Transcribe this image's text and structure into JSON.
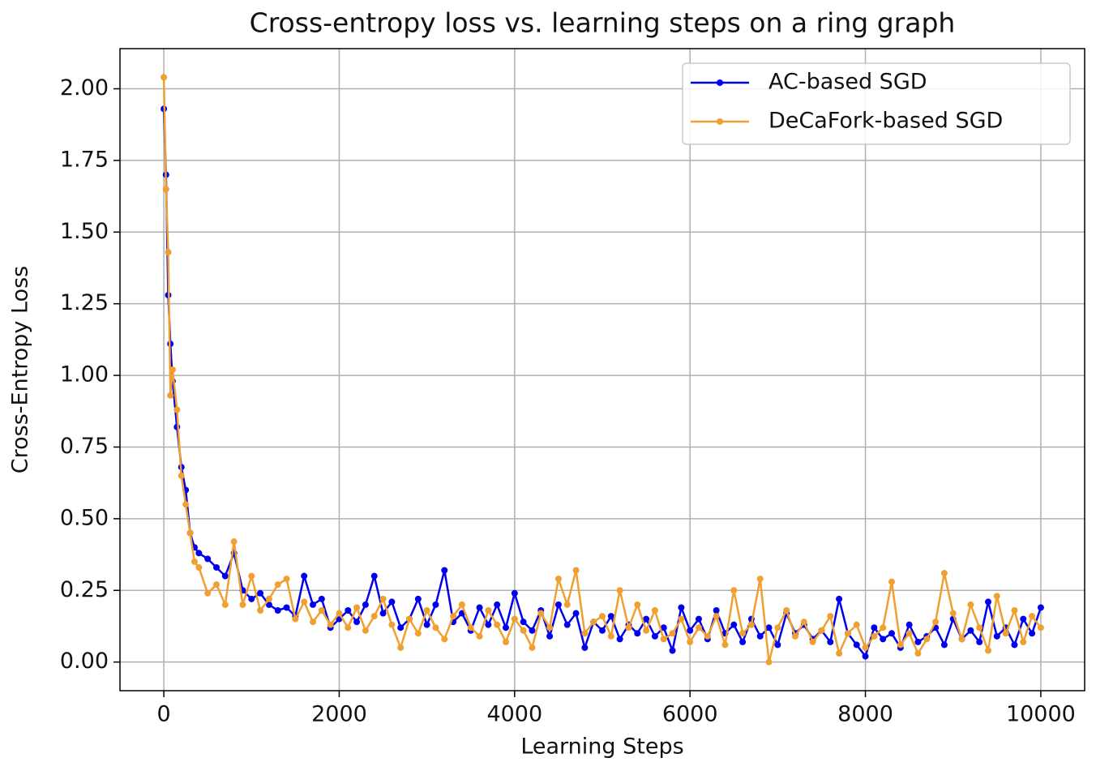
{
  "chart_data": {
    "type": "line",
    "title": "Cross-entropy loss vs. learning steps on a ring graph",
    "x_label": "Learning Steps",
    "y_label": "Cross-Entropy Loss",
    "x": [
      0,
      25,
      50,
      75,
      100,
      150,
      200,
      250,
      300,
      350,
      400,
      500,
      600,
      700,
      800,
      900,
      1000,
      1100,
      1200,
      1300,
      1400,
      1500,
      1600,
      1700,
      1800,
      1900,
      2000,
      2100,
      2200,
      2300,
      2400,
      2500,
      2600,
      2700,
      2800,
      2900,
      3000,
      3100,
      3200,
      3300,
      3400,
      3500,
      3600,
      3700,
      3800,
      3900,
      4000,
      4100,
      4200,
      4300,
      4400,
      4500,
      4600,
      4700,
      4800,
      4900,
      5000,
      5100,
      5200,
      5300,
      5400,
      5500,
      5600,
      5700,
      5800,
      5900,
      6000,
      6100,
      6200,
      6300,
      6400,
      6500,
      6600,
      6700,
      6800,
      6900,
      7000,
      7100,
      7200,
      7300,
      7400,
      7500,
      7600,
      7700,
      7800,
      7900,
      8000,
      8100,
      8200,
      8300,
      8400,
      8500,
      8600,
      8700,
      8800,
      8900,
      9000,
      9100,
      9200,
      9300,
      9400,
      9500,
      9600,
      9700,
      9800,
      9900,
      10000
    ],
    "series": [
      {
        "name": "AC-based SGD",
        "color": "#0000ee",
        "values": [
          1.93,
          1.7,
          1.28,
          1.11,
          0.98,
          0.82,
          0.68,
          0.6,
          0.45,
          0.4,
          0.38,
          0.36,
          0.33,
          0.3,
          0.38,
          0.25,
          0.22,
          0.24,
          0.2,
          0.18,
          0.19,
          0.16,
          0.3,
          0.2,
          0.22,
          0.12,
          0.15,
          0.18,
          0.14,
          0.2,
          0.3,
          0.17,
          0.21,
          0.12,
          0.15,
          0.22,
          0.13,
          0.2,
          0.32,
          0.14,
          0.17,
          0.11,
          0.19,
          0.13,
          0.2,
          0.12,
          0.24,
          0.14,
          0.11,
          0.18,
          0.09,
          0.2,
          0.13,
          0.17,
          0.05,
          0.14,
          0.11,
          0.16,
          0.08,
          0.13,
          0.1,
          0.15,
          0.09,
          0.12,
          0.04,
          0.19,
          0.11,
          0.15,
          0.08,
          0.18,
          0.1,
          0.13,
          0.07,
          0.15,
          0.09,
          0.12,
          0.06,
          0.17,
          0.1,
          0.13,
          0.08,
          0.11,
          0.07,
          0.22,
          0.1,
          0.06,
          0.02,
          0.12,
          0.08,
          0.1,
          0.05,
          0.13,
          0.07,
          0.09,
          0.12,
          0.06,
          0.15,
          0.08,
          0.11,
          0.07,
          0.21,
          0.09,
          0.12,
          0.06,
          0.15,
          0.1,
          0.19
        ]
      },
      {
        "name": "DeCaFork-based SGD",
        "color": "#f0a030",
        "values": [
          2.04,
          1.65,
          1.43,
          0.93,
          1.02,
          0.88,
          0.65,
          0.55,
          0.45,
          0.35,
          0.33,
          0.24,
          0.27,
          0.2,
          0.42,
          0.2,
          0.3,
          0.18,
          0.22,
          0.27,
          0.29,
          0.15,
          0.21,
          0.14,
          0.18,
          0.13,
          0.17,
          0.12,
          0.19,
          0.11,
          0.16,
          0.22,
          0.13,
          0.05,
          0.15,
          0.1,
          0.18,
          0.12,
          0.08,
          0.16,
          0.2,
          0.12,
          0.09,
          0.18,
          0.13,
          0.07,
          0.15,
          0.11,
          0.05,
          0.17,
          0.12,
          0.29,
          0.2,
          0.32,
          0.1,
          0.14,
          0.16,
          0.09,
          0.25,
          0.12,
          0.2,
          0.11,
          0.18,
          0.08,
          0.1,
          0.15,
          0.07,
          0.12,
          0.09,
          0.16,
          0.06,
          0.25,
          0.1,
          0.13,
          0.29,
          0.0,
          0.12,
          0.18,
          0.09,
          0.14,
          0.07,
          0.11,
          0.16,
          0.03,
          0.1,
          0.13,
          0.05,
          0.09,
          0.12,
          0.28,
          0.06,
          0.1,
          0.03,
          0.08,
          0.14,
          0.31,
          0.17,
          0.08,
          0.2,
          0.12,
          0.04,
          0.23,
          0.1,
          0.18,
          0.07,
          0.16,
          0.12
        ]
      }
    ],
    "xlim": [
      -500,
      10500
    ],
    "ylim": [
      -0.1,
      2.14
    ],
    "xticks": [
      0,
      2000,
      4000,
      6000,
      8000,
      10000
    ],
    "yticks": [
      {
        "value": 0,
        "label": "0.00"
      },
      {
        "value": 0.25,
        "label": "0.25"
      },
      {
        "value": 0.5,
        "label": "0.50"
      },
      {
        "value": 0.75,
        "label": "0.75"
      },
      {
        "value": 1,
        "label": "1.00"
      },
      {
        "value": 1.25,
        "label": "1.25"
      },
      {
        "value": 1.5,
        "label": "1.50"
      },
      {
        "value": 1.75,
        "label": "1.75"
      },
      {
        "value": 2,
        "label": "2.00"
      }
    ],
    "grid": true,
    "legend": "upper right"
  }
}
